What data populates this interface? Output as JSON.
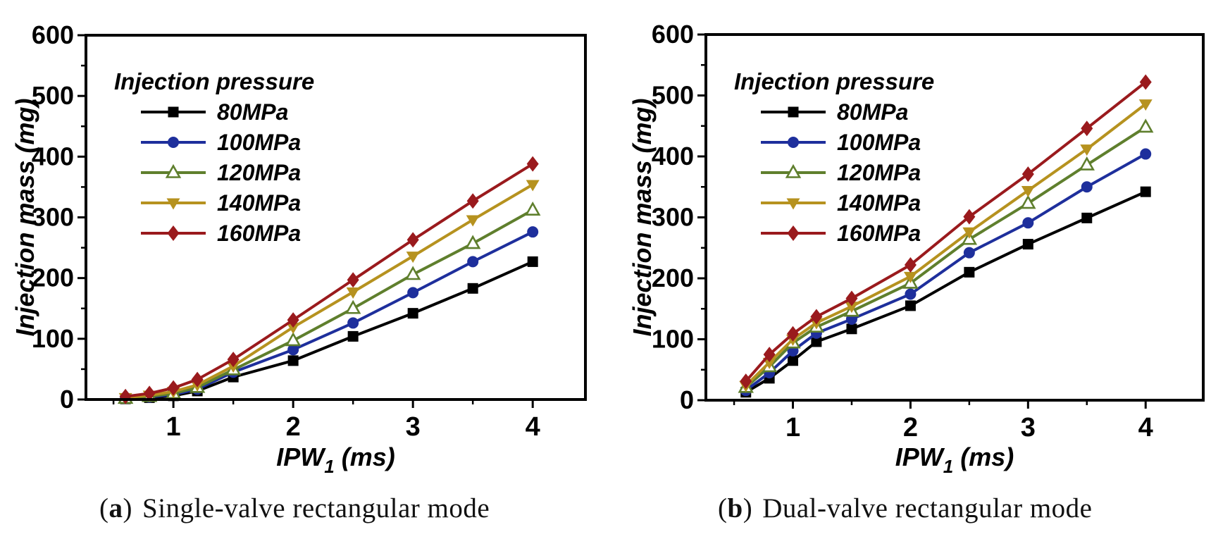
{
  "captions": {
    "a": {
      "prefix": "(",
      "letter": "a",
      "suffix": ")",
      "text": "Single-valve rectangular mode"
    },
    "b": {
      "prefix": "(",
      "letter": "b",
      "suffix": ")",
      "text": "Dual-valve rectangular mode"
    }
  },
  "chart_data": [
    {
      "id": "a",
      "type": "line",
      "caption": "(a) Single-valve rectangular mode",
      "xlabel": {
        "main": "IPW",
        "sub": "1",
        "unit": " (ms)"
      },
      "ylabel": "Injection mass (mg)",
      "xlim": [
        0.27,
        4.44
      ],
      "ylim": [
        0,
        600
      ],
      "x_ticks": [
        1,
        2,
        3,
        4
      ],
      "x_minor_ticks": [
        0.5,
        1.5,
        2.5,
        3.5
      ],
      "y_ticks": [
        0,
        100,
        200,
        300,
        400,
        500,
        600
      ],
      "y_minor_ticks": [
        50,
        150,
        250,
        350,
        450,
        550
      ],
      "grid": false,
      "legend": {
        "title": "Injection pressure",
        "position": "upper-left-inside"
      },
      "x": [
        0.6,
        0.8,
        1.0,
        1.2,
        1.5,
        2.0,
        2.5,
        3.0,
        3.5,
        4.0
      ],
      "series": [
        {
          "name": "80MPa",
          "color": "#000000",
          "marker": "square",
          "values": [
            1,
            3,
            6,
            14,
            37,
            64,
            104,
            142,
            183,
            227
          ]
        },
        {
          "name": "100MPa",
          "color": "#1e2f9c",
          "marker": "circle",
          "values": [
            2,
            4,
            8,
            17,
            45,
            82,
            126,
            176,
            227,
            276
          ]
        },
        {
          "name": "120MPa",
          "color": "#5f7f2d",
          "marker": "triangle-up-open",
          "values": [
            2,
            5,
            10,
            20,
            49,
            97,
            150,
            206,
            257,
            312
          ]
        },
        {
          "name": "140MPa",
          "color": "#b6921f",
          "marker": "triangle-down",
          "values": [
            3,
            7,
            13,
            24,
            55,
            119,
            177,
            236,
            296,
            354
          ]
        },
        {
          "name": "160MPa",
          "color": "#9a1a1d",
          "marker": "diamond",
          "values": [
            5,
            10,
            19,
            33,
            66,
            131,
            197,
            263,
            327,
            388
          ]
        }
      ]
    },
    {
      "id": "b",
      "type": "line",
      "caption": "(b) Dual-valve rectangular mode",
      "xlabel": {
        "main": "IPW",
        "sub": "1",
        "unit": " (ms)"
      },
      "ylabel": "Injection mass (mg)",
      "xlim": [
        0.26,
        4.49
      ],
      "ylim": [
        0,
        600
      ],
      "x_ticks": [
        1,
        2,
        3,
        4
      ],
      "x_minor_ticks": [
        0.5,
        1.5,
        2.5,
        3.5
      ],
      "y_ticks": [
        0,
        100,
        200,
        300,
        400,
        500,
        600
      ],
      "y_minor_ticks": [
        50,
        150,
        250,
        350,
        450,
        550
      ],
      "grid": false,
      "legend": {
        "title": "Injection pressure",
        "position": "upper-left-inside"
      },
      "x": [
        0.6,
        0.8,
        1.0,
        1.2,
        1.5,
        2.0,
        2.5,
        3.0,
        3.5,
        4.0
      ],
      "series": [
        {
          "name": "80MPa",
          "color": "#000000",
          "marker": "square",
          "values": [
            13,
            36,
            65,
            96,
            117,
            155,
            210,
            256,
            299,
            342
          ]
        },
        {
          "name": "100MPa",
          "color": "#1e2f9c",
          "marker": "circle",
          "values": [
            16,
            45,
            81,
            110,
            133,
            174,
            242,
            291,
            350,
            404
          ]
        },
        {
          "name": "120MPa",
          "color": "#5f7f2d",
          "marker": "triangle-up-open",
          "values": [
            21,
            55,
            94,
            120,
            146,
            192,
            264,
            323,
            386,
            448
          ]
        },
        {
          "name": "140MPa",
          "color": "#b6921f",
          "marker": "triangle-down",
          "values": [
            24,
            62,
            100,
            127,
            154,
            203,
            276,
            344,
            412,
            486
          ]
        },
        {
          "name": "160MPa",
          "color": "#9a1a1d",
          "marker": "diamond",
          "values": [
            31,
            75,
            109,
            137,
            167,
            222,
            301,
            371,
            446,
            522
          ]
        }
      ]
    }
  ]
}
